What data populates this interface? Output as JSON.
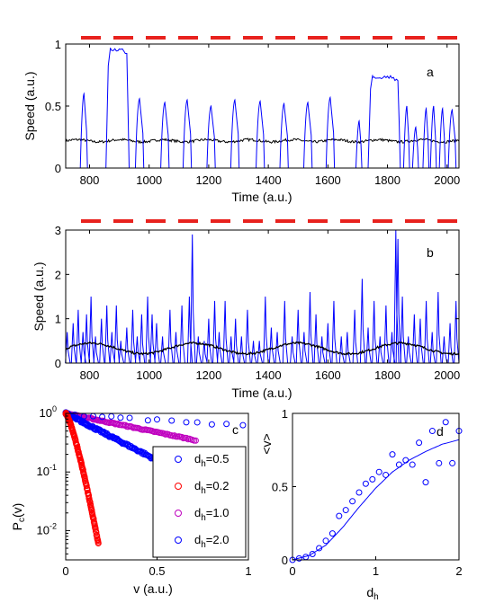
{
  "panels": {
    "a": {
      "label": "a",
      "xlabel": "Time (a.u.)",
      "ylabel": "Speed (a.u.)",
      "xlim": [
        720,
        2040
      ],
      "ylim": [
        0,
        1
      ],
      "xticks": [
        800,
        1000,
        1200,
        1400,
        1600,
        1800,
        2000
      ],
      "yticks": [
        0,
        0.5,
        1
      ],
      "ytick_labels": [
        "0",
        "0.5",
        "1"
      ],
      "dash_color": "#e8221e"
    },
    "b": {
      "label": "b",
      "xlabel": "Time (a.u.)",
      "ylabel": "Speed (a.u.)",
      "xlim": [
        720,
        2040
      ],
      "ylim": [
        0,
        3
      ],
      "xticks": [
        800,
        1000,
        1200,
        1400,
        1600,
        1800,
        2000
      ],
      "yticks": [
        0,
        1,
        2,
        3
      ],
      "ytick_labels": [
        "0",
        "1",
        "2",
        "3"
      ],
      "dash_color": "#e8221e"
    },
    "c": {
      "label": "c",
      "xlabel": "v (a.u.)",
      "ylabel": "P_c(v)",
      "xlim": [
        0,
        1
      ],
      "ylim_log10": [
        -2.5,
        0
      ],
      "xticks": [
        0,
        0.5,
        1
      ],
      "xtick_labels": [
        "0",
        "0.5",
        "1"
      ],
      "yticks_log10": [
        -2,
        -1,
        0
      ],
      "legend": [
        {
          "text": "d",
          "sub": "h",
          "suffix": "=0.5",
          "color": "#0000ff"
        },
        {
          "text": "d",
          "sub": "h",
          "suffix": "=0.2",
          "color": "#ff0000"
        },
        {
          "text": "d",
          "sub": "h",
          "suffix": "=1.0",
          "color": "#bf00bf"
        },
        {
          "text": "d",
          "sub": "h",
          "suffix": "=2.0",
          "color": "#0000ff"
        }
      ]
    },
    "d": {
      "label": "d",
      "xlabel": "d",
      "xlabel_sub": "h",
      "ylabel": "<v>",
      "xlim": [
        0,
        2
      ],
      "ylim": [
        0,
        1
      ],
      "xticks": [
        0,
        1,
        2
      ],
      "yticks": [
        0,
        0.5,
        1
      ],
      "ytick_labels": [
        "0",
        "0.5",
        "1"
      ]
    }
  },
  "chart_data": [
    {
      "type": "line",
      "title": "",
      "xlabel": "Time (a.u.)",
      "ylabel": "Speed (a.u.)",
      "xlim": [
        720,
        2040
      ],
      "ylim": [
        0,
        1
      ],
      "series": [
        {
          "color": "#0000ff",
          "events": [
            {
              "t": 775,
              "peak": 0.6,
              "dur": 18
            },
            {
              "t": 855,
              "peak": 0.97,
              "dur": 70,
              "plateau": true
            },
            {
              "t": 960,
              "peak": 0.56,
              "dur": 22
            },
            {
              "t": 1045,
              "peak": 0.53,
              "dur": 22
            },
            {
              "t": 1120,
              "peak": 0.55,
              "dur": 22
            },
            {
              "t": 1200,
              "peak": 0.5,
              "dur": 22
            },
            {
              "t": 1280,
              "peak": 0.55,
              "dur": 22
            },
            {
              "t": 1365,
              "peak": 0.54,
              "dur": 22
            },
            {
              "t": 1445,
              "peak": 0.52,
              "dur": 22
            },
            {
              "t": 1525,
              "peak": 0.53,
              "dur": 22
            },
            {
              "t": 1600,
              "peak": 0.57,
              "dur": 22
            },
            {
              "t": 1700,
              "peak": 0.38,
              "dur": 14
            },
            {
              "t": 1735,
              "peak": 0.75,
              "dur": 100,
              "plateau": true
            },
            {
              "t": 1860,
              "peak": 0.5,
              "dur": 14
            },
            {
              "t": 1890,
              "peak": 0.33,
              "dur": 14
            },
            {
              "t": 1925,
              "peak": 0.48,
              "dur": 14
            },
            {
              "t": 1950,
              "peak": 0.5,
              "dur": 14
            },
            {
              "t": 1980,
              "peak": 0.48,
              "dur": 14
            },
            {
              "t": 2010,
              "peak": 0.47,
              "dur": 20
            }
          ]
        },
        {
          "color": "#000000",
          "mean": 0.22,
          "amplitude": 0.015
        }
      ]
    },
    {
      "type": "line",
      "title": "",
      "xlabel": "Time (a.u.)",
      "ylabel": "Speed (a.u.)",
      "xlim": [
        720,
        2040
      ],
      "ylim": [
        0,
        3
      ],
      "series": [
        {
          "color": "#0000ff",
          "events": [
            {
              "t": 725,
              "peak": 0.7
            },
            {
              "t": 745,
              "peak": 0.9
            },
            {
              "t": 762,
              "peak": 1.2
            },
            {
              "t": 778,
              "peak": 0.7
            },
            {
              "t": 790,
              "peak": 1.1
            },
            {
              "t": 805,
              "peak": 1.5
            },
            {
              "t": 820,
              "peak": 0.6
            },
            {
              "t": 840,
              "peak": 1.0
            },
            {
              "t": 858,
              "peak": 1.3
            },
            {
              "t": 875,
              "peak": 0.7
            },
            {
              "t": 890,
              "peak": 1.3
            },
            {
              "t": 905,
              "peak": 0.5
            },
            {
              "t": 925,
              "peak": 0.8
            },
            {
              "t": 945,
              "peak": 1.2
            },
            {
              "t": 960,
              "peak": 0.6
            },
            {
              "t": 975,
              "peak": 1.1
            },
            {
              "t": 995,
              "peak": 1.5
            },
            {
              "t": 1010,
              "peak": 1.1
            },
            {
              "t": 1025,
              "peak": 0.9
            },
            {
              "t": 1045,
              "peak": 0.6
            },
            {
              "t": 1070,
              "peak": 1.2
            },
            {
              "t": 1090,
              "peak": 0.7
            },
            {
              "t": 1110,
              "peak": 1.3
            },
            {
              "t": 1135,
              "peak": 1.5
            },
            {
              "t": 1145,
              "peak": 2.9
            },
            {
              "t": 1165,
              "peak": 0.6
            },
            {
              "t": 1185,
              "peak": 0.5
            },
            {
              "t": 1200,
              "peak": 1.0
            },
            {
              "t": 1220,
              "peak": 1.4
            },
            {
              "t": 1235,
              "peak": 0.7
            },
            {
              "t": 1255,
              "peak": 1.4
            },
            {
              "t": 1275,
              "peak": 0.6
            },
            {
              "t": 1290,
              "peak": 1.0
            },
            {
              "t": 1310,
              "peak": 0.6
            },
            {
              "t": 1330,
              "peak": 1.2
            },
            {
              "t": 1350,
              "peak": 0.5
            },
            {
              "t": 1370,
              "peak": 0.5
            },
            {
              "t": 1390,
              "peak": 1.5
            },
            {
              "t": 1410,
              "peak": 0.8
            },
            {
              "t": 1430,
              "peak": 0.7
            },
            {
              "t": 1455,
              "peak": 1.4
            },
            {
              "t": 1480,
              "peak": 0.6
            },
            {
              "t": 1500,
              "peak": 1.2
            },
            {
              "t": 1520,
              "peak": 0.7
            },
            {
              "t": 1540,
              "peak": 1.6
            },
            {
              "t": 1560,
              "peak": 1.1
            },
            {
              "t": 1580,
              "peak": 0.6
            },
            {
              "t": 1600,
              "peak": 0.9
            },
            {
              "t": 1620,
              "peak": 1.4
            },
            {
              "t": 1645,
              "peak": 0.6
            },
            {
              "t": 1665,
              "peak": 0.7
            },
            {
              "t": 1690,
              "peak": 1.2
            },
            {
              "t": 1715,
              "peak": 1.9
            },
            {
              "t": 1735,
              "peak": 0.8
            },
            {
              "t": 1755,
              "peak": 1.4
            },
            {
              "t": 1775,
              "peak": 0.6
            },
            {
              "t": 1795,
              "peak": 1.3
            },
            {
              "t": 1815,
              "peak": 0.7
            },
            {
              "t": 1828,
              "peak": 3.0
            },
            {
              "t": 1835,
              "peak": 2.8
            },
            {
              "t": 1850,
              "peak": 1.5
            },
            {
              "t": 1870,
              "peak": 0.6
            },
            {
              "t": 1890,
              "peak": 1.1
            },
            {
              "t": 1910,
              "peak": 1.0
            },
            {
              "t": 1930,
              "peak": 1.4
            },
            {
              "t": 1950,
              "peak": 0.7
            },
            {
              "t": 1970,
              "peak": 1.6
            },
            {
              "t": 1990,
              "peak": 0.6
            },
            {
              "t": 2010,
              "peak": 0.9
            },
            {
              "t": 2030,
              "peak": 1.4
            }
          ]
        },
        {
          "color": "#000000",
          "mean": 0.33,
          "amplitude": 0.12
        }
      ]
    },
    {
      "type": "scatter",
      "title": "",
      "xlabel": "v (a.u.)",
      "ylabel": "P_c(v)",
      "yscale": "log",
      "xlim": [
        0,
        1
      ],
      "ylim": [
        0.003,
        1
      ],
      "series": [
        {
          "name": "d_h=0.5",
          "color": "#0000ff",
          "x_max": 0.97,
          "decay": 1.0,
          "sparse": true
        },
        {
          "name": "d_h=0.2",
          "color": "#ff0000",
          "x_max": 0.18,
          "decay": 28.0,
          "n": 140
        },
        {
          "name": "d_h=1.0",
          "color": "#bf00bf",
          "x_max": 0.72,
          "decay": 1.5,
          "n": 110
        },
        {
          "name": "d_h=2.0",
          "color": "#0000ff",
          "x_max": 0.98,
          "decay": 5.3,
          "n": 200
        }
      ]
    },
    {
      "type": "scatter",
      "title": "",
      "xlabel": "d_h",
      "ylabel": "<v>",
      "xlim": [
        0,
        2
      ],
      "ylim": [
        0,
        1
      ],
      "series": [
        {
          "color": "#0000ff",
          "marker": "circle",
          "x": [
            0.0,
            0.08,
            0.16,
            0.24,
            0.32,
            0.4,
            0.48,
            0.56,
            0.64,
            0.72,
            0.8,
            0.88,
            0.96,
            1.04,
            1.12,
            1.2,
            1.28,
            1.36,
            1.44,
            1.52,
            1.6,
            1.68,
            1.76,
            1.84,
            1.92,
            2.0
          ],
          "y": [
            0.0,
            0.01,
            0.02,
            0.04,
            0.08,
            0.13,
            0.18,
            0.3,
            0.34,
            0.4,
            0.46,
            0.52,
            0.55,
            0.6,
            0.58,
            0.72,
            0.65,
            0.68,
            0.65,
            0.8,
            0.53,
            0.88,
            0.66,
            0.94,
            0.66,
            0.88
          ]
        },
        {
          "color": "#0000ff",
          "marker": "line",
          "x": [
            0,
            0.2,
            0.4,
            0.6,
            0.8,
            1.0,
            1.2,
            1.4,
            1.6,
            1.8,
            2.0
          ],
          "y": [
            0,
            0.03,
            0.1,
            0.22,
            0.36,
            0.49,
            0.6,
            0.68,
            0.74,
            0.79,
            0.82
          ]
        }
      ]
    }
  ]
}
